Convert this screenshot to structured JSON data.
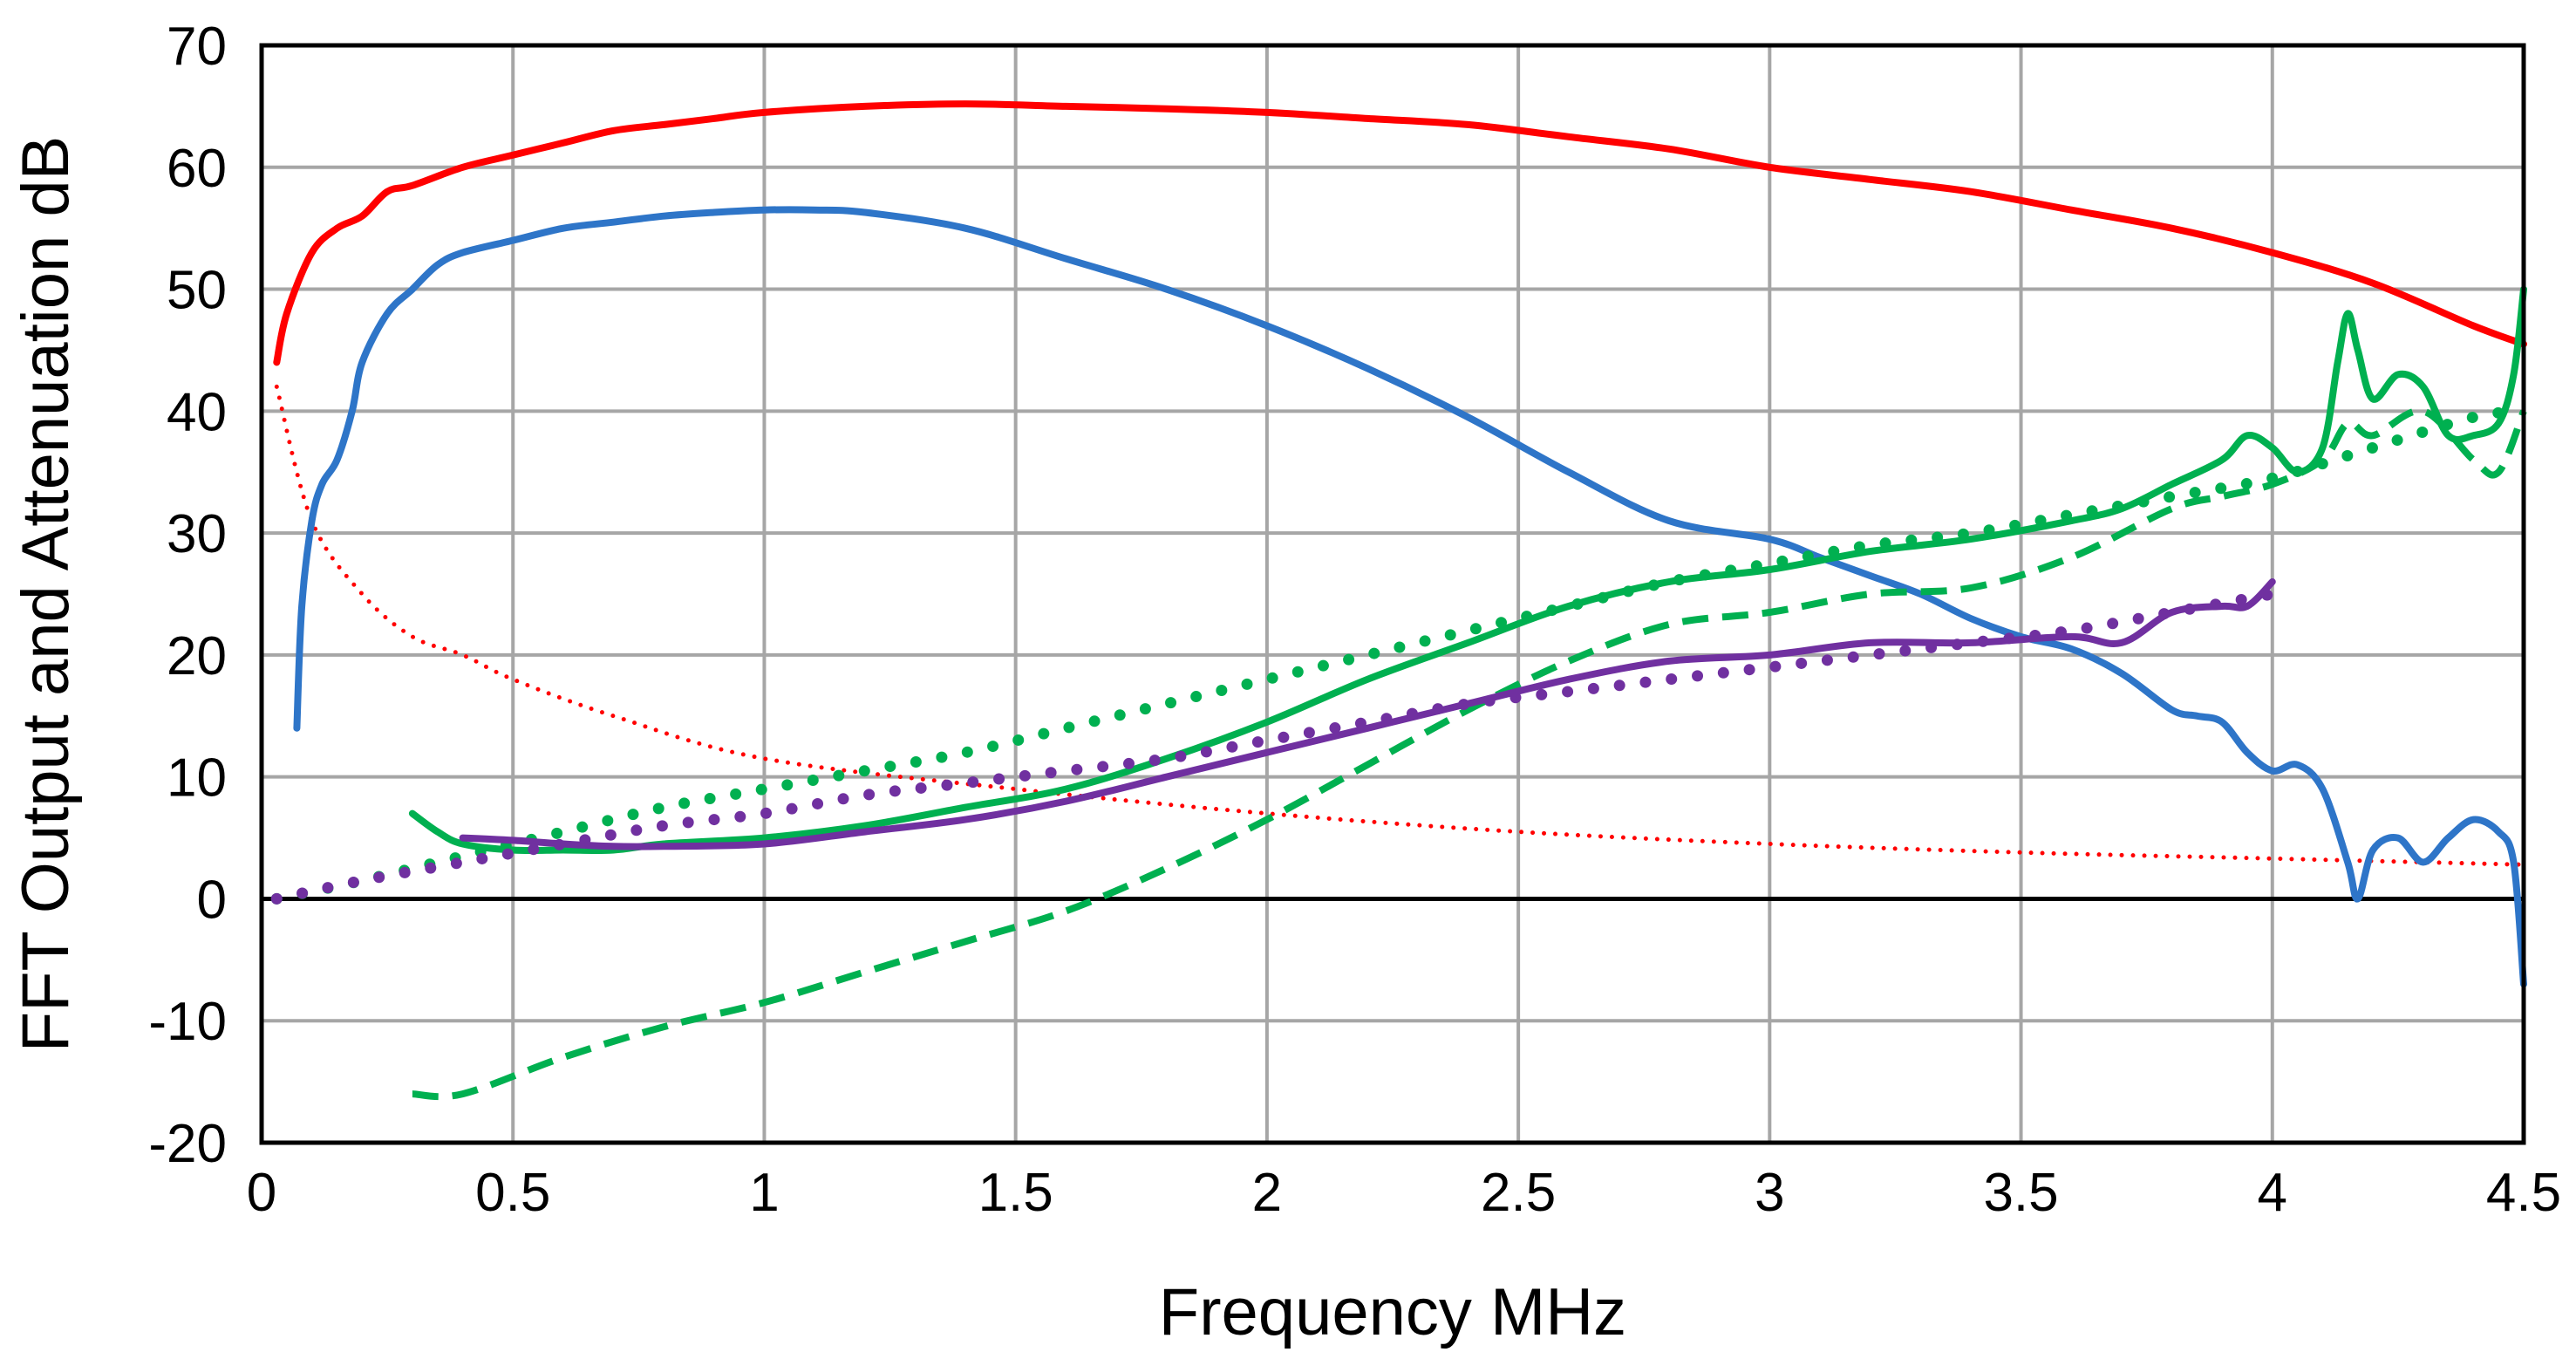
{
  "chart_data": {
    "type": "line",
    "title": "",
    "xlabel": "Frequency  MHz",
    "ylabel": "FFT Output and Attenuation dB",
    "xlim": [
      0,
      4.5
    ],
    "ylim": [
      -20,
      70
    ],
    "grid": true,
    "legend": "none",
    "x_ticks": [
      "0",
      "0.5",
      "1",
      "1.5",
      "2",
      "2.5",
      "3",
      "3.5",
      "4",
      "4.5"
    ],
    "y_ticks": [
      "70",
      "60",
      "50",
      "40",
      "30",
      "20",
      "10",
      "0",
      "-10",
      "-20"
    ],
    "series": [
      {
        "name": "red-solid",
        "color": "#ff0000",
        "style": "solid",
        "x": [
          0.03,
          0.05,
          0.1,
          0.15,
          0.2,
          0.25,
          0.3,
          0.4,
          0.5,
          0.6,
          0.7,
          0.8,
          0.9,
          1.0,
          1.2,
          1.4,
          1.6,
          1.8,
          2.0,
          2.2,
          2.4,
          2.6,
          2.8,
          3.0,
          3.2,
          3.4,
          3.6,
          3.8,
          4.0,
          4.2,
          4.4,
          4.5
        ],
        "y": [
          44,
          48,
          53,
          55,
          56,
          58,
          58.5,
          60,
          61,
          62,
          63,
          63.5,
          64,
          64.5,
          65,
          65.2,
          65,
          64.8,
          64.5,
          64,
          63.5,
          62.5,
          61.5,
          60,
          59,
          58,
          56.5,
          55,
          53,
          50.5,
          47,
          45.5
        ]
      },
      {
        "name": "red-dotted",
        "color": "#ff0000",
        "style": "dotted",
        "x": [
          0.03,
          0.1,
          0.2,
          0.3,
          0.4,
          0.5,
          0.7,
          1.0,
          1.5,
          2.0,
          2.5,
          3.0,
          3.5,
          4.0,
          4.5
        ],
        "y": [
          42,
          31,
          25,
          21.5,
          20,
          18,
          15,
          11.5,
          9,
          7,
          5.5,
          4.5,
          3.8,
          3.3,
          2.8
        ]
      },
      {
        "name": "blue-solid",
        "color": "#2e75c8",
        "style": "solid",
        "x": [
          0.07,
          0.08,
          0.1,
          0.12,
          0.15,
          0.18,
          0.2,
          0.25,
          0.3,
          0.35,
          0.4,
          0.5,
          0.6,
          0.7,
          0.8,
          0.9,
          1.0,
          1.1,
          1.2,
          1.4,
          1.6,
          1.8,
          2.0,
          2.2,
          2.4,
          2.6,
          2.8,
          3.0,
          3.1,
          3.2,
          3.3,
          3.4,
          3.5,
          3.6,
          3.7,
          3.8,
          3.85,
          3.9,
          3.95,
          4.0,
          4.05,
          4.1,
          4.15,
          4.17,
          4.2,
          4.25,
          4.3,
          4.35,
          4.4,
          4.45,
          4.48,
          4.5
        ],
        "y": [
          14,
          24,
          31,
          34,
          36,
          40,
          44,
          48,
          50,
          52,
          53,
          54,
          55,
          55.5,
          56,
          56.3,
          56.5,
          56.5,
          56.3,
          55,
          52.5,
          50,
          47,
          43.5,
          39.5,
          35,
          31,
          29.5,
          28,
          26.5,
          25,
          23,
          21.5,
          20.5,
          18.5,
          15.5,
          15,
          14.5,
          12,
          10.5,
          11,
          9,
          3,
          0,
          4,
          5,
          3,
          5,
          6.5,
          5.5,
          3,
          -7
        ]
      },
      {
        "name": "green-solid",
        "color": "#00b050",
        "style": "solid",
        "x": [
          0.3,
          0.35,
          0.4,
          0.5,
          0.6,
          0.7,
          0.8,
          1.0,
          1.2,
          1.4,
          1.6,
          1.8,
          2.0,
          2.2,
          2.4,
          2.6,
          2.8,
          3.0,
          3.2,
          3.4,
          3.6,
          3.7,
          3.8,
          3.9,
          3.95,
          4.0,
          4.05,
          4.1,
          4.13,
          4.15,
          4.17,
          4.2,
          4.25,
          4.3,
          4.35,
          4.4,
          4.45,
          4.48,
          4.5
        ],
        "y": [
          7,
          5.5,
          4.5,
          4,
          4,
          4,
          4.5,
          5,
          6,
          7.5,
          9,
          11.5,
          14.5,
          18,
          21,
          24,
          26,
          27,
          28.5,
          29.5,
          31,
          32,
          34,
          36,
          38,
          37,
          35,
          37,
          44,
          48,
          45,
          41,
          43,
          42,
          38,
          38,
          39,
          43,
          50
        ]
      },
      {
        "name": "green-dotted",
        "color": "#00b050",
        "style": "dotted",
        "x": [
          0.03,
          0.2,
          0.4,
          0.6,
          0.8,
          1.0,
          1.2,
          1.4,
          1.6,
          1.8,
          2.0,
          2.2,
          2.4,
          2.6,
          2.8,
          3.0,
          3.2,
          3.4,
          3.6,
          3.8,
          4.0,
          4.2,
          4.4,
          4.5
        ],
        "y": [
          0,
          1.5,
          3.5,
          5.5,
          7.5,
          9,
          10.5,
          12,
          14,
          16,
          18,
          20,
          22,
          24,
          26,
          27.5,
          29,
          30,
          31.5,
          33,
          34.5,
          37,
          39.5,
          40
        ]
      },
      {
        "name": "green-dashed",
        "color": "#00b050",
        "style": "dashed",
        "x": [
          0.3,
          0.4,
          0.6,
          0.8,
          1.0,
          1.2,
          1.4,
          1.6,
          1.8,
          2.0,
          2.2,
          2.4,
          2.6,
          2.8,
          3.0,
          3.2,
          3.4,
          3.6,
          3.8,
          3.9,
          4.0,
          4.1,
          4.15,
          4.2,
          4.3,
          4.4,
          4.45,
          4.5
        ],
        "y": [
          -16,
          -16,
          -13,
          -10.5,
          -8.5,
          -6,
          -3.5,
          -1,
          2.5,
          6.5,
          11,
          15.5,
          19.5,
          22.5,
          23.5,
          25,
          25.5,
          28,
          32,
          33,
          34,
          36,
          39,
          38,
          40,
          36,
          35,
          40
        ]
      },
      {
        "name": "purple-solid",
        "color": "#7030a0",
        "style": "solid",
        "x": [
          0.4,
          0.5,
          0.6,
          0.7,
          0.8,
          1.0,
          1.2,
          1.4,
          1.6,
          1.8,
          2.0,
          2.2,
          2.4,
          2.6,
          2.8,
          3.0,
          3.2,
          3.4,
          3.6,
          3.7,
          3.8,
          3.9,
          3.95,
          4.0
        ],
        "y": [
          5,
          4.8,
          4.5,
          4.3,
          4.3,
          4.5,
          5.5,
          6.5,
          8,
          10,
          12,
          14,
          16,
          18,
          19.5,
          20,
          21,
          21,
          21.5,
          21,
          23.5,
          24,
          24,
          26
        ]
      },
      {
        "name": "purple-dotted",
        "color": "#7030a0",
        "style": "dotted",
        "x": [
          0.03,
          0.2,
          0.4,
          0.6,
          0.8,
          1.0,
          1.2,
          1.4,
          1.6,
          1.8,
          2.0,
          2.2,
          2.4,
          2.6,
          2.8,
          3.0,
          3.2,
          3.4,
          3.6,
          3.8,
          4.0
        ],
        "y": [
          0,
          1.5,
          3,
          4.5,
          6,
          7,
          8.5,
          9.5,
          10.5,
          11.5,
          13,
          14.5,
          16,
          17,
          18,
          19,
          20,
          21,
          22,
          23.5,
          25
        ]
      }
    ]
  }
}
